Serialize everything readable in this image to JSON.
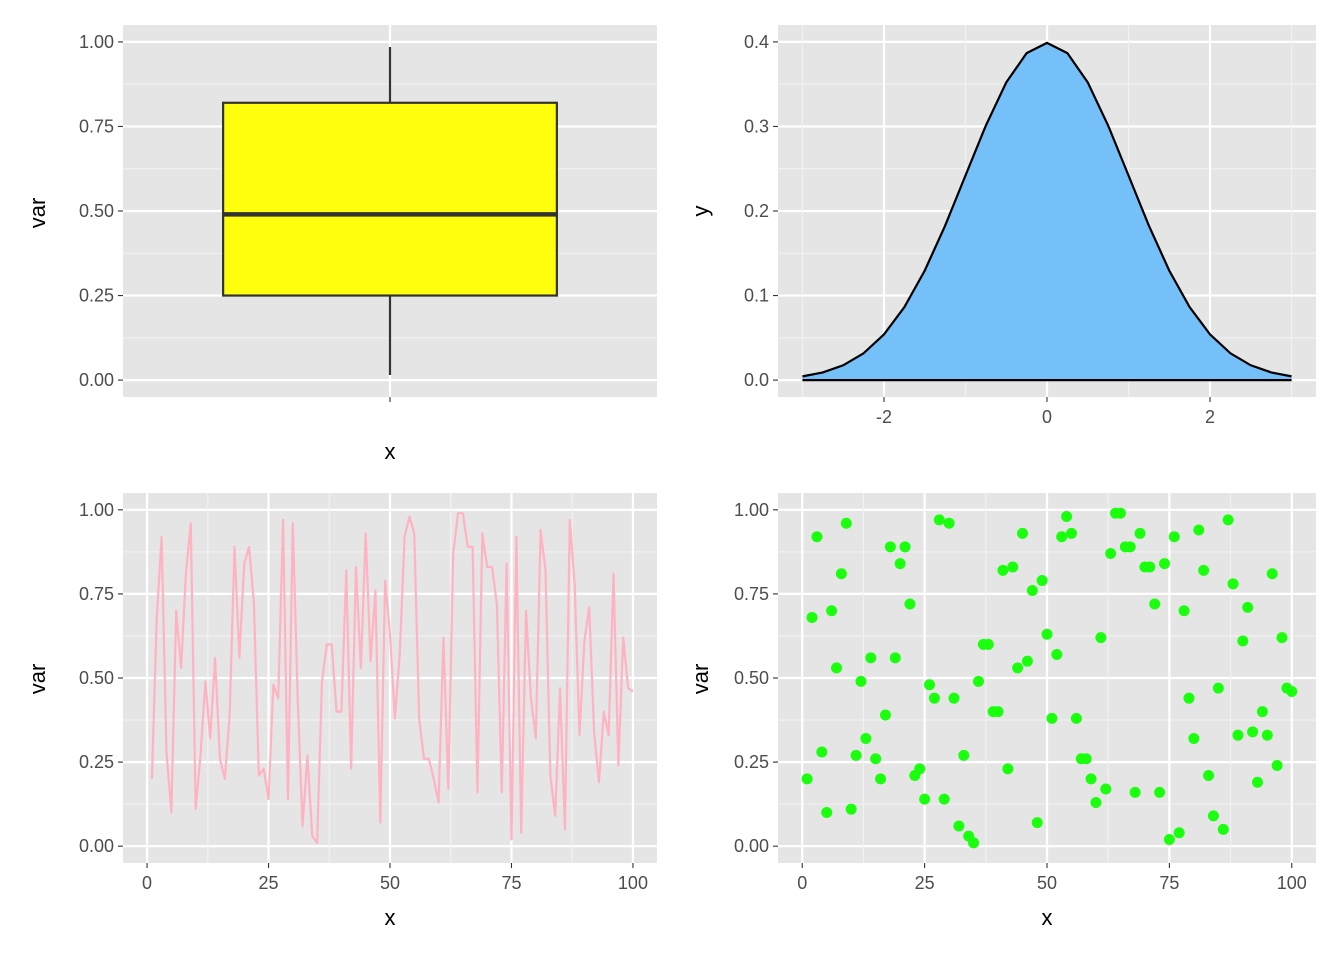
{
  "colors": {
    "panel_bg": "#e5e5e5",
    "grid_major": "#ffffff",
    "tick_text": "#4d4d4d",
    "box_fill": "#ffff0d",
    "density_fill": "#75c0f8",
    "line_color": "#ffb3c1",
    "point_color": "#1aff0d"
  },
  "chart_data": [
    {
      "type": "box",
      "xlabel": "x",
      "ylabel": "var",
      "ylim": [
        0,
        1
      ],
      "y_ticks": [
        "0.00",
        "0.25",
        "0.50",
        "0.75",
        "1.00"
      ],
      "y_tick_values": [
        0,
        0.25,
        0.5,
        0.75,
        1
      ],
      "x_ticks": [
        ""
      ],
      "grid": true,
      "box": {
        "min": 0.015,
        "q1": 0.25,
        "median": 0.49,
        "q3": 0.82,
        "max": 0.985
      }
    },
    {
      "type": "area",
      "xlabel": "",
      "ylabel": "y",
      "xlim": [
        -3.3,
        3.3
      ],
      "ylim": [
        0,
        0.4
      ],
      "x_ticks": [
        "-2",
        "0",
        "2"
      ],
      "x_tick_values": [
        -2,
        0,
        2
      ],
      "y_ticks": [
        "0.0",
        "0.1",
        "0.2",
        "0.3",
        "0.4"
      ],
      "y_tick_values": [
        0,
        0.1,
        0.2,
        0.3,
        0.4
      ],
      "grid": true,
      "x": [
        -3,
        -2.75,
        -2.5,
        -2.25,
        -2,
        -1.75,
        -1.5,
        -1.25,
        -1,
        -0.75,
        -0.5,
        -0.25,
        0,
        0.25,
        0.5,
        0.75,
        1,
        1.25,
        1.5,
        1.75,
        2,
        2.25,
        2.5,
        2.75,
        3
      ],
      "y": [
        0.0044,
        0.0091,
        0.0175,
        0.0317,
        0.054,
        0.0863,
        0.1295,
        0.1826,
        0.242,
        0.3011,
        0.3521,
        0.3867,
        0.3989,
        0.3867,
        0.3521,
        0.3011,
        0.242,
        0.1826,
        0.1295,
        0.0863,
        0.054,
        0.0317,
        0.0175,
        0.0091,
        0.0044
      ]
    },
    {
      "type": "line",
      "xlabel": "x",
      "ylabel": "var",
      "xlim": [
        0,
        100
      ],
      "ylim": [
        0,
        1
      ],
      "x_ticks": [
        "0",
        "25",
        "50",
        "75",
        "100"
      ],
      "x_tick_values": [
        0,
        25,
        50,
        75,
        100
      ],
      "y_ticks": [
        "0.00",
        "0.25",
        "0.50",
        "0.75",
        "1.00"
      ],
      "y_tick_values": [
        0,
        0.25,
        0.5,
        0.75,
        1
      ],
      "grid": true,
      "x": [
        1,
        2,
        3,
        4,
        5,
        6,
        7,
        8,
        9,
        10,
        11,
        12,
        13,
        14,
        15,
        16,
        17,
        18,
        19,
        20,
        21,
        22,
        23,
        24,
        25,
        26,
        27,
        28,
        29,
        30,
        31,
        32,
        33,
        34,
        35,
        36,
        37,
        38,
        39,
        40,
        41,
        42,
        43,
        44,
        45,
        46,
        47,
        48,
        49,
        50,
        51,
        52,
        53,
        54,
        55,
        56,
        57,
        58,
        59,
        60,
        61,
        62,
        63,
        64,
        65,
        66,
        67,
        68,
        69,
        70,
        71,
        72,
        73,
        74,
        75,
        76,
        77,
        78,
        79,
        80,
        81,
        82,
        83,
        84,
        85,
        86,
        87,
        88,
        89,
        90,
        91,
        92,
        93,
        94,
        95,
        96,
        97,
        98,
        99,
        100
      ],
      "y": [
        0.2,
        0.68,
        0.92,
        0.28,
        0.1,
        0.7,
        0.53,
        0.81,
        0.96,
        0.11,
        0.27,
        0.49,
        0.32,
        0.56,
        0.26,
        0.2,
        0.39,
        0.89,
        0.56,
        0.84,
        0.89,
        0.72,
        0.21,
        0.23,
        0.14,
        0.48,
        0.44,
        0.97,
        0.14,
        0.96,
        0.44,
        0.06,
        0.27,
        0.03,
        0.01,
        0.49,
        0.6,
        0.6,
        0.4,
        0.4,
        0.82,
        0.23,
        0.83,
        0.53,
        0.93,
        0.55,
        0.76,
        0.07,
        0.79,
        0.63,
        0.38,
        0.57,
        0.92,
        0.98,
        0.93,
        0.38,
        0.26,
        0.26,
        0.2,
        0.13,
        0.62,
        0.17,
        0.87,
        0.99,
        0.99,
        0.89,
        0.89,
        0.16,
        0.93,
        0.83,
        0.83,
        0.72,
        0.16,
        0.84,
        0.02,
        0.92,
        0.04,
        0.7,
        0.44,
        0.32,
        0.94,
        0.82,
        0.21,
        0.09,
        0.47,
        0.05,
        0.97,
        0.78,
        0.33,
        0.61,
        0.71,
        0.34,
        0.19,
        0.4,
        0.33,
        0.81,
        0.24,
        0.62,
        0.47,
        0.46
      ]
    },
    {
      "type": "scatter",
      "xlabel": "x",
      "ylabel": "var",
      "xlim": [
        0,
        100
      ],
      "ylim": [
        0,
        1
      ],
      "x_ticks": [
        "0",
        "25",
        "50",
        "75",
        "100"
      ],
      "x_tick_values": [
        0,
        25,
        50,
        75,
        100
      ],
      "y_ticks": [
        "0.00",
        "0.25",
        "0.50",
        "0.75",
        "1.00"
      ],
      "y_tick_values": [
        0,
        0.25,
        0.5,
        0.75,
        1
      ],
      "grid": true,
      "x": [
        1,
        2,
        3,
        4,
        5,
        6,
        7,
        8,
        9,
        10,
        11,
        12,
        13,
        14,
        15,
        16,
        17,
        18,
        19,
        20,
        21,
        22,
        23,
        24,
        25,
        26,
        27,
        28,
        29,
        30,
        31,
        32,
        33,
        34,
        35,
        36,
        37,
        38,
        39,
        40,
        41,
        42,
        43,
        44,
        45,
        46,
        47,
        48,
        49,
        50,
        51,
        52,
        53,
        54,
        55,
        56,
        57,
        58,
        59,
        60,
        61,
        62,
        63,
        64,
        65,
        66,
        67,
        68,
        69,
        70,
        71,
        72,
        73,
        74,
        75,
        76,
        77,
        78,
        79,
        80,
        81,
        82,
        83,
        84,
        85,
        86,
        87,
        88,
        89,
        90,
        91,
        92,
        93,
        94,
        95,
        96,
        97,
        98,
        99,
        100
      ],
      "y": [
        0.2,
        0.68,
        0.92,
        0.28,
        0.1,
        0.7,
        0.53,
        0.81,
        0.96,
        0.11,
        0.27,
        0.49,
        0.32,
        0.56,
        0.26,
        0.2,
        0.39,
        0.89,
        0.56,
        0.84,
        0.89,
        0.72,
        0.21,
        0.23,
        0.14,
        0.48,
        0.44,
        0.97,
        0.14,
        0.96,
        0.44,
        0.06,
        0.27,
        0.03,
        0.01,
        0.49,
        0.6,
        0.6,
        0.4,
        0.4,
        0.82,
        0.23,
        0.83,
        0.53,
        0.93,
        0.55,
        0.76,
        0.07,
        0.79,
        0.63,
        0.38,
        0.57,
        0.92,
        0.98,
        0.93,
        0.38,
        0.26,
        0.26,
        0.2,
        0.13,
        0.62,
        0.17,
        0.87,
        0.99,
        0.99,
        0.89,
        0.89,
        0.16,
        0.93,
        0.83,
        0.83,
        0.72,
        0.16,
        0.84,
        0.02,
        0.92,
        0.04,
        0.7,
        0.44,
        0.32,
        0.94,
        0.82,
        0.21,
        0.09,
        0.47,
        0.05,
        0.97,
        0.78,
        0.33,
        0.61,
        0.71,
        0.34,
        0.19,
        0.4,
        0.33,
        0.81,
        0.24,
        0.62,
        0.47,
        0.46
      ]
    }
  ]
}
